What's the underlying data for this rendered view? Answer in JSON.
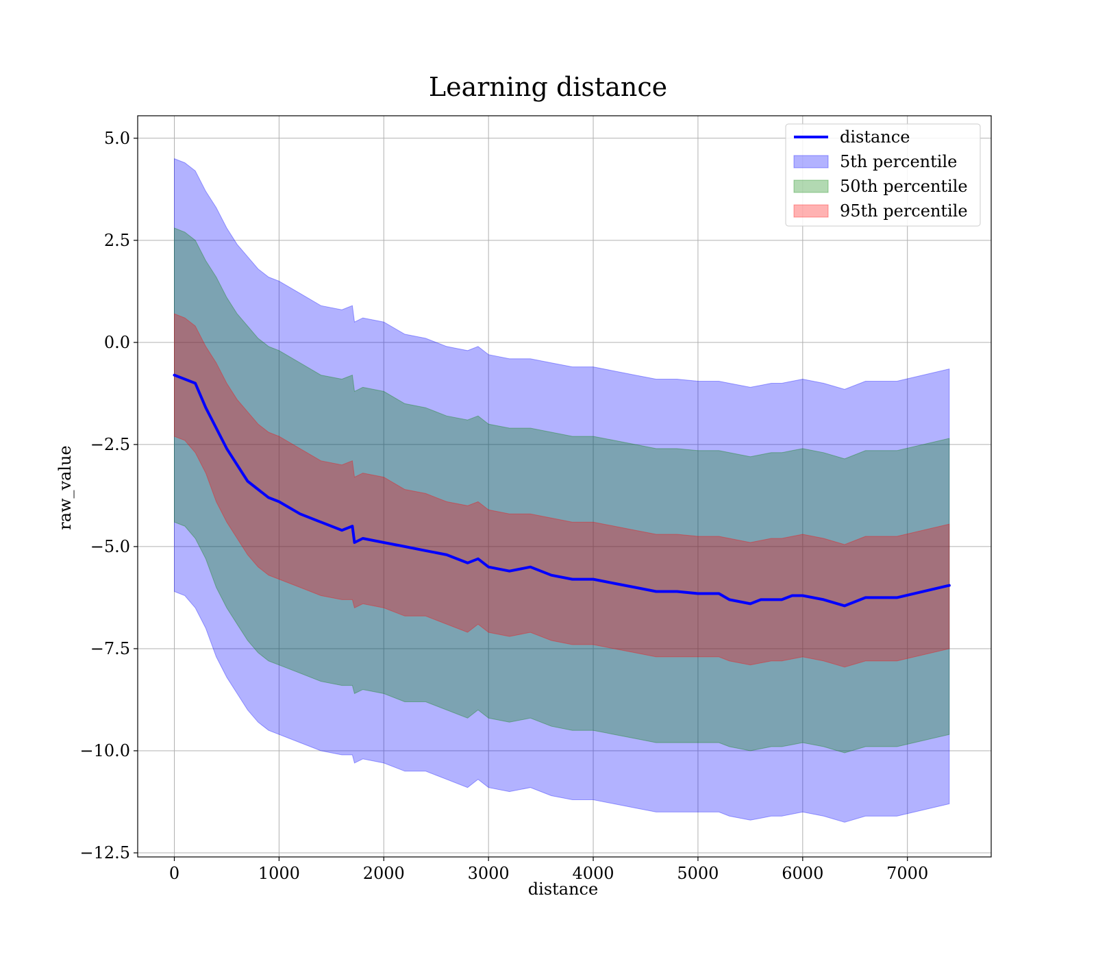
{
  "chart_data": {
    "type": "area",
    "title": "Learning distance",
    "xlabel": "distance",
    "ylabel": "raw_value",
    "xlim": [
      -350,
      7800
    ],
    "ylim": [
      -12.6,
      5.55
    ],
    "grid": true,
    "legend_position": "top-right",
    "x_ticks": [
      0,
      1000,
      2000,
      3000,
      4000,
      5000,
      6000,
      7000
    ],
    "x_tick_labels": [
      "0",
      "1000",
      "2000",
      "3000",
      "4000",
      "5000",
      "6000",
      "7000"
    ],
    "y_ticks": [
      5.0,
      2.5,
      0.0,
      -2.5,
      -5.0,
      -7.5,
      -10.0,
      -12.5
    ],
    "y_tick_labels": [
      "5.0",
      "2.5",
      "0.0",
      "−2.5",
      "−5.0",
      "−7.5",
      "−10.0",
      "−12.5"
    ],
    "x": [
      0,
      100,
      200,
      300,
      400,
      500,
      600,
      700,
      800,
      900,
      1000,
      1200,
      1400,
      1600,
      1700,
      1720,
      1800,
      2000,
      2200,
      2400,
      2600,
      2800,
      2900,
      3000,
      3200,
      3400,
      3600,
      3800,
      4000,
      4200,
      4400,
      4600,
      4800,
      5000,
      5200,
      5300,
      5500,
      5600,
      5700,
      5800,
      5900,
      6000,
      6200,
      6400,
      6600,
      6900,
      7400
    ],
    "series": [
      {
        "name": "distance",
        "kind": "line",
        "color": "#0000ff",
        "values": [
          -0.8,
          -0.9,
          -1.0,
          -1.6,
          -2.1,
          -2.6,
          -3.0,
          -3.4,
          -3.6,
          -3.8,
          -3.9,
          -4.2,
          -4.4,
          -4.6,
          -4.5,
          -4.9,
          -4.8,
          -4.9,
          -5.0,
          -5.1,
          -5.2,
          -5.4,
          -5.3,
          -5.5,
          -5.6,
          -5.5,
          -5.7,
          -5.8,
          -5.8,
          -5.9,
          -6.0,
          -6.1,
          -6.1,
          -6.15,
          -6.15,
          -6.3,
          -6.4,
          -6.3,
          -6.3,
          -6.3,
          -6.2,
          -6.2,
          -6.3,
          -6.45,
          -6.25,
          -6.25,
          -5.95
        ]
      },
      {
        "name": "5th percentile",
        "kind": "band",
        "color": "#0000ff",
        "opacity": 0.3,
        "upper": [
          4.5,
          4.4,
          4.2,
          3.7,
          3.3,
          2.8,
          2.4,
          2.1,
          1.8,
          1.6,
          1.5,
          1.2,
          0.9,
          0.8,
          0.9,
          0.5,
          0.6,
          0.5,
          0.2,
          0.1,
          -0.1,
          -0.2,
          -0.1,
          -0.3,
          -0.4,
          -0.4,
          -0.5,
          -0.6,
          -0.6,
          -0.7,
          -0.8,
          -0.9,
          -0.9,
          -0.95,
          -0.95,
          -1.0,
          -1.1,
          -1.05,
          -1.0,
          -1.0,
          -0.95,
          -0.9,
          -1.0,
          -1.15,
          -0.95,
          -0.95,
          -0.65
        ],
        "lower": [
          -6.1,
          -6.2,
          -6.5,
          -7.0,
          -7.7,
          -8.2,
          -8.6,
          -9.0,
          -9.3,
          -9.5,
          -9.6,
          -9.8,
          -10.0,
          -10.1,
          -10.1,
          -10.3,
          -10.2,
          -10.3,
          -10.5,
          -10.5,
          -10.7,
          -10.9,
          -10.7,
          -10.9,
          -11.0,
          -10.9,
          -11.1,
          -11.2,
          -11.2,
          -11.3,
          -11.4,
          -11.5,
          -11.5,
          -11.5,
          -11.5,
          -11.6,
          -11.7,
          -11.65,
          -11.6,
          -11.6,
          -11.55,
          -11.5,
          -11.6,
          -11.75,
          -11.6,
          -11.6,
          -11.3
        ]
      },
      {
        "name": "50th percentile",
        "kind": "band",
        "color": "#008000",
        "opacity": 0.3,
        "upper": [
          2.8,
          2.7,
          2.5,
          2.0,
          1.6,
          1.1,
          0.7,
          0.4,
          0.1,
          -0.1,
          -0.2,
          -0.5,
          -0.8,
          -0.9,
          -0.8,
          -1.2,
          -1.1,
          -1.2,
          -1.5,
          -1.6,
          -1.8,
          -1.9,
          -1.8,
          -2.0,
          -2.1,
          -2.1,
          -2.2,
          -2.3,
          -2.3,
          -2.4,
          -2.5,
          -2.6,
          -2.6,
          -2.65,
          -2.65,
          -2.7,
          -2.8,
          -2.75,
          -2.7,
          -2.7,
          -2.65,
          -2.6,
          -2.7,
          -2.85,
          -2.65,
          -2.65,
          -2.35
        ],
        "lower": [
          -4.4,
          -4.5,
          -4.8,
          -5.3,
          -6.0,
          -6.5,
          -6.9,
          -7.3,
          -7.6,
          -7.8,
          -7.9,
          -8.1,
          -8.3,
          -8.4,
          -8.4,
          -8.6,
          -8.5,
          -8.6,
          -8.8,
          -8.8,
          -9.0,
          -9.2,
          -9.0,
          -9.2,
          -9.3,
          -9.2,
          -9.4,
          -9.5,
          -9.5,
          -9.6,
          -9.7,
          -9.8,
          -9.8,
          -9.8,
          -9.8,
          -9.9,
          -10.0,
          -9.95,
          -9.9,
          -9.9,
          -9.85,
          -9.8,
          -9.9,
          -10.05,
          -9.9,
          -9.9,
          -9.6
        ]
      },
      {
        "name": "95th percentile",
        "kind": "band",
        "color": "#ff0000",
        "opacity": 0.3,
        "upper": [
          0.7,
          0.6,
          0.4,
          -0.1,
          -0.5,
          -1.0,
          -1.4,
          -1.7,
          -2.0,
          -2.2,
          -2.3,
          -2.6,
          -2.9,
          -3.0,
          -2.9,
          -3.3,
          -3.2,
          -3.3,
          -3.6,
          -3.7,
          -3.9,
          -4.0,
          -3.9,
          -4.1,
          -4.2,
          -4.2,
          -4.3,
          -4.4,
          -4.4,
          -4.5,
          -4.6,
          -4.7,
          -4.7,
          -4.75,
          -4.75,
          -4.8,
          -4.9,
          -4.85,
          -4.8,
          -4.8,
          -4.75,
          -4.7,
          -4.8,
          -4.95,
          -4.75,
          -4.75,
          -4.45
        ],
        "lower": [
          -2.3,
          -2.4,
          -2.7,
          -3.2,
          -3.9,
          -4.4,
          -4.8,
          -5.2,
          -5.5,
          -5.7,
          -5.8,
          -6.0,
          -6.2,
          -6.3,
          -6.3,
          -6.5,
          -6.4,
          -6.5,
          -6.7,
          -6.7,
          -6.9,
          -7.1,
          -6.9,
          -7.1,
          -7.2,
          -7.1,
          -7.3,
          -7.4,
          -7.4,
          -7.5,
          -7.6,
          -7.7,
          -7.7,
          -7.7,
          -7.7,
          -7.8,
          -7.9,
          -7.85,
          -7.8,
          -7.8,
          -7.75,
          -7.7,
          -7.8,
          -7.95,
          -7.8,
          -7.8,
          -7.5
        ]
      }
    ]
  }
}
